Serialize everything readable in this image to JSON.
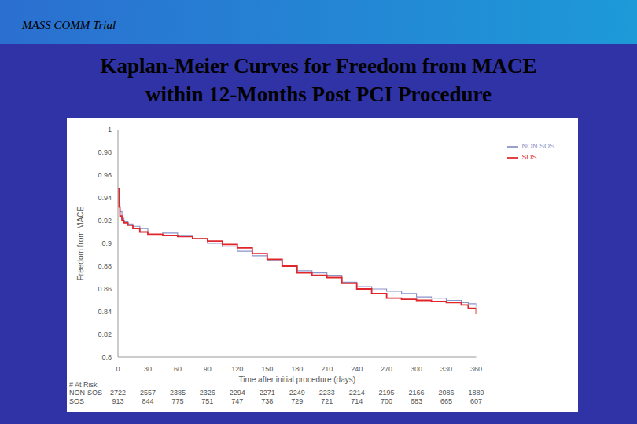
{
  "slide_header": "MASS COMM Trial",
  "chart_data": {
    "type": "line",
    "title": "Kaplan-Meier Curves for Freedom from MACE\nwithin 12-Months Post PCI Procedure",
    "x_label": "Time after initial procedure (days)",
    "y_label": "Freedom from MACE",
    "xlim": [
      0,
      360
    ],
    "xticks": [
      0,
      30,
      60,
      90,
      120,
      150,
      180,
      210,
      240,
      270,
      300,
      330,
      360
    ],
    "ylim": [
      0.8,
      1
    ],
    "yticks": [
      0.8,
      0.82,
      0.84,
      0.86,
      0.88,
      0.9,
      0.92,
      0.94,
      0.96,
      0.98,
      1
    ],
    "grid": false,
    "legend": "upper right",
    "line_style": "step",
    "series": [
      {
        "name": "NON SOS",
        "color": "#8a94c8",
        "x": [
          0,
          1,
          2,
          4,
          6,
          10,
          15,
          22,
          30,
          45,
          60,
          75,
          90,
          105,
          120,
          135,
          150,
          165,
          180,
          195,
          210,
          225,
          240,
          255,
          270,
          285,
          300,
          315,
          330,
          345,
          352,
          360
        ],
        "values": [
          0.946,
          0.935,
          0.928,
          0.922,
          0.919,
          0.917,
          0.915,
          0.913,
          0.91,
          0.909,
          0.907,
          0.904,
          0.9,
          0.897,
          0.893,
          0.889,
          0.885,
          0.88,
          0.876,
          0.874,
          0.872,
          0.866,
          0.862,
          0.86,
          0.858,
          0.856,
          0.853,
          0.852,
          0.85,
          0.848,
          0.847,
          0.844
        ]
      },
      {
        "name": "SOS",
        "color": "#e0262b",
        "x": [
          0,
          1,
          2,
          4,
          6,
          10,
          15,
          22,
          30,
          45,
          60,
          75,
          90,
          105,
          120,
          135,
          150,
          165,
          180,
          195,
          210,
          225,
          240,
          255,
          270,
          285,
          300,
          315,
          330,
          345,
          352,
          360
        ],
        "values": [
          0.948,
          0.932,
          0.924,
          0.92,
          0.918,
          0.916,
          0.913,
          0.91,
          0.908,
          0.907,
          0.906,
          0.904,
          0.902,
          0.899,
          0.896,
          0.891,
          0.886,
          0.88,
          0.874,
          0.872,
          0.87,
          0.865,
          0.86,
          0.856,
          0.852,
          0.851,
          0.85,
          0.849,
          0.848,
          0.846,
          0.843,
          0.838
        ]
      }
    ],
    "at_risk": {
      "label": "# At Risk",
      "rows": [
        {
          "name": "NON-SOS",
          "values": [
            2722,
            2557,
            2385,
            2326,
            2294,
            2271,
            2249,
            2233,
            2214,
            2195,
            2166,
            2086,
            1889
          ]
        },
        {
          "name": "SOS",
          "values": [
            913,
            844,
            775,
            751,
            747,
            738,
            729,
            721,
            714,
            700,
            683,
            665,
            607
          ]
        }
      ]
    }
  }
}
